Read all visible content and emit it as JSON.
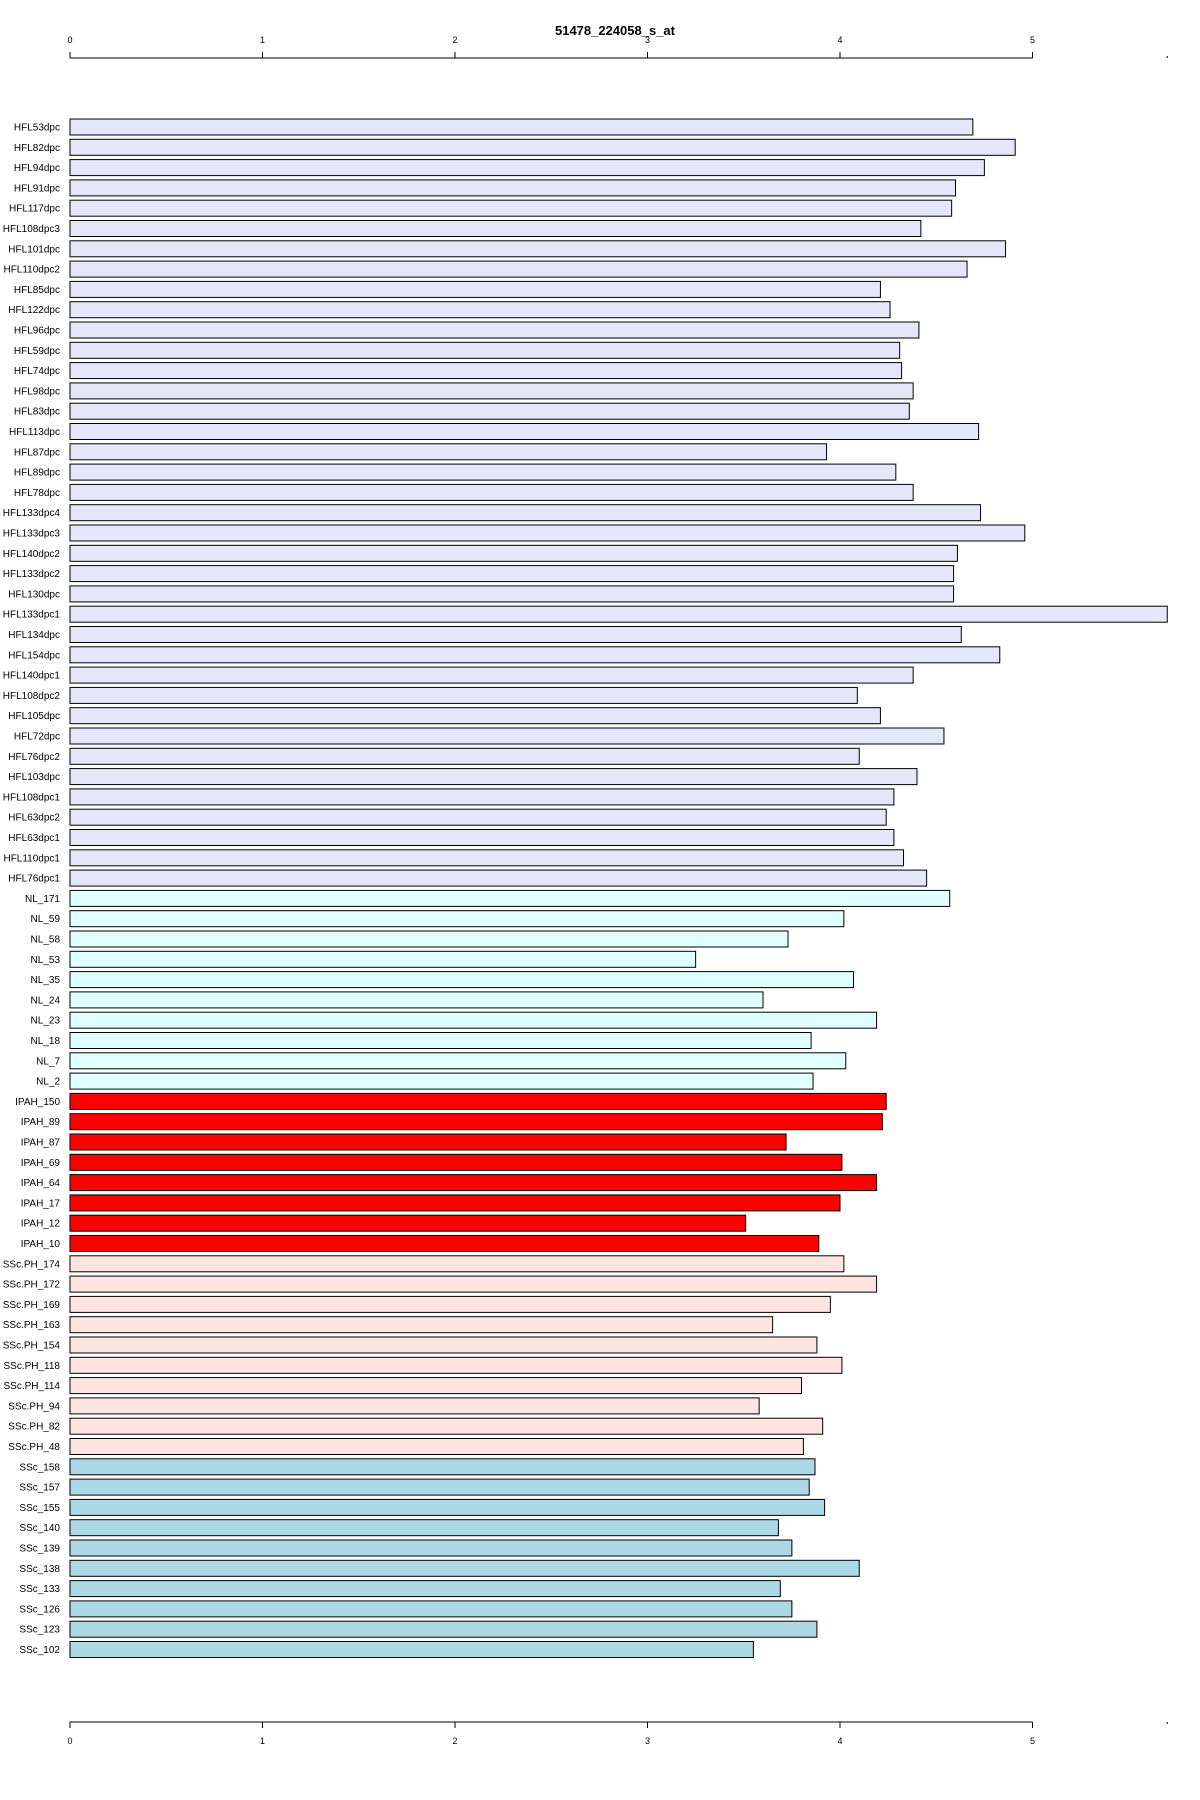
{
  "chart_data": {
    "type": "bar",
    "orientation": "horizontal",
    "title": "51478_224058_s_at",
    "xlabel": "",
    "ylabel": "",
    "xlim": [
      0,
      5.7
    ],
    "xticks": [
      0,
      1,
      2,
      3,
      4,
      5
    ],
    "axes": [
      "top",
      "bottom"
    ],
    "grid": false,
    "legend": "none",
    "group_colors": {
      "HFL": "#e6e6fa",
      "NL": "#e0ffff",
      "IPAH": "#ff0000",
      "SSc.PH": "#ffe4e1",
      "SSc": "#add8e6"
    },
    "categories": [
      "HFL53dpc",
      "HFL82dpc",
      "HFL94dpc",
      "HFL91dpc",
      "HFL117dpc",
      "HFL108dpc3",
      "HFL101dpc",
      "HFL110dpc2",
      "HFL85dpc",
      "HFL122dpc",
      "HFL96dpc",
      "HFL59dpc",
      "HFL74dpc",
      "HFL98dpc",
      "HFL83dpc",
      "HFL113dpc",
      "HFL87dpc",
      "HFL89dpc",
      "HFL78dpc",
      "HFL133dpc4",
      "HFL133dpc3",
      "HFL140dpc2",
      "HFL133dpc2",
      "HFL130dpc",
      "HFL133dpc1",
      "HFL134dpc",
      "HFL154dpc",
      "HFL140dpc1",
      "HFL108dpc2",
      "HFL105dpc",
      "HFL72dpc",
      "HFL76dpc2",
      "HFL103dpc",
      "HFL108dpc1",
      "HFL63dpc2",
      "HFL63dpc1",
      "HFL110dpc1",
      "HFL76dpc1",
      "NL_171",
      "NL_59",
      "NL_58",
      "NL_53",
      "NL_35",
      "NL_24",
      "NL_23",
      "NL_18",
      "NL_7",
      "NL_2",
      "IPAH_150",
      "IPAH_89",
      "IPAH_87",
      "IPAH_69",
      "IPAH_64",
      "IPAH_17",
      "IPAH_12",
      "IPAH_10",
      "SSc.PH_174",
      "SSc.PH_172",
      "SSc.PH_169",
      "SSc.PH_163",
      "SSc.PH_154",
      "SSc.PH_118",
      "SSc.PH_114",
      "SSc.PH_94",
      "SSc.PH_82",
      "SSc.PH_48",
      "SSc_158",
      "SSc_157",
      "SSc_155",
      "SSc_140",
      "SSc_139",
      "SSc_138",
      "SSc_133",
      "SSc_126",
      "SSc_123",
      "SSc_102"
    ],
    "groups": [
      "HFL",
      "HFL",
      "HFL",
      "HFL",
      "HFL",
      "HFL",
      "HFL",
      "HFL",
      "HFL",
      "HFL",
      "HFL",
      "HFL",
      "HFL",
      "HFL",
      "HFL",
      "HFL",
      "HFL",
      "HFL",
      "HFL",
      "HFL",
      "HFL",
      "HFL",
      "HFL",
      "HFL",
      "HFL",
      "HFL",
      "HFL",
      "HFL",
      "HFL",
      "HFL",
      "HFL",
      "HFL",
      "HFL",
      "HFL",
      "HFL",
      "HFL",
      "HFL",
      "HFL",
      "NL",
      "NL",
      "NL",
      "NL",
      "NL",
      "NL",
      "NL",
      "NL",
      "NL",
      "NL",
      "IPAH",
      "IPAH",
      "IPAH",
      "IPAH",
      "IPAH",
      "IPAH",
      "IPAH",
      "IPAH",
      "SSc.PH",
      "SSc.PH",
      "SSc.PH",
      "SSc.PH",
      "SSc.PH",
      "SSc.PH",
      "SSc.PH",
      "SSc.PH",
      "SSc.PH",
      "SSc.PH",
      "SSc",
      "SSc",
      "SSc",
      "SSc",
      "SSc",
      "SSc",
      "SSc",
      "SSc",
      "SSc",
      "SSc"
    ],
    "values": [
      4.69,
      4.91,
      4.75,
      4.6,
      4.58,
      4.42,
      4.86,
      4.66,
      4.21,
      4.26,
      4.41,
      4.31,
      4.32,
      4.38,
      4.36,
      4.72,
      3.93,
      4.29,
      4.38,
      4.73,
      4.96,
      4.61,
      4.59,
      4.59,
      5.7,
      4.63,
      4.83,
      4.38,
      4.09,
      4.21,
      4.54,
      4.1,
      4.4,
      4.28,
      4.24,
      4.28,
      4.33,
      4.45,
      4.57,
      4.02,
      3.73,
      3.25,
      4.07,
      3.6,
      4.19,
      3.85,
      4.03,
      3.86,
      4.24,
      4.22,
      3.72,
      4.01,
      4.19,
      4.0,
      3.51,
      3.89,
      4.02,
      4.19,
      3.95,
      3.65,
      3.88,
      4.01,
      3.8,
      3.58,
      3.91,
      3.81,
      3.87,
      3.84,
      3.92,
      3.68,
      3.75,
      4.1,
      3.69,
      3.75,
      3.88,
      3.55
    ]
  }
}
